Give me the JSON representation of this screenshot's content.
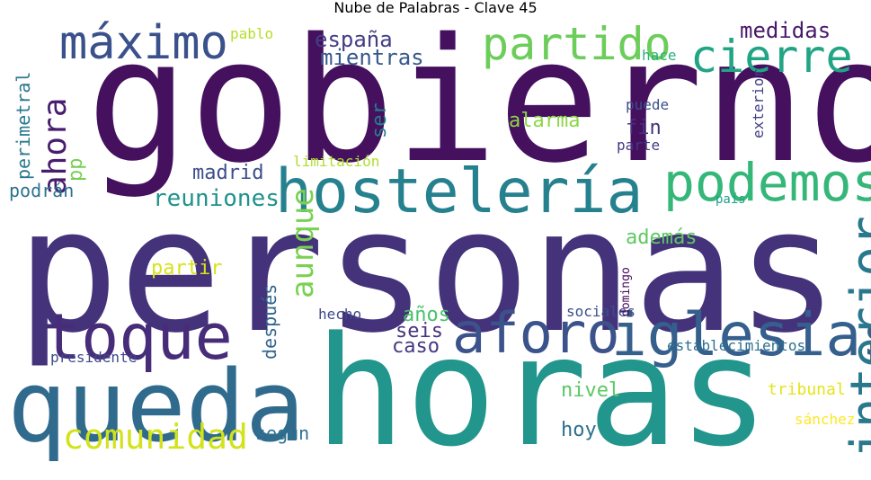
{
  "title": "Nube de Palabras - Clave 45",
  "words": [
    {
      "text": "gobierno",
      "color": "#45105e"
    },
    {
      "text": "personas",
      "color": "#44327a"
    },
    {
      "text": "horas",
      "color": "#22968c"
    },
    {
      "text": "queda",
      "color": "#306b8e"
    },
    {
      "text": "hostelería",
      "color": "#26818e"
    },
    {
      "text": "podemos",
      "color": "#35b779"
    },
    {
      "text": "toque",
      "color": "#472c7a"
    },
    {
      "text": "iglesias",
      "color": "#355f8d"
    },
    {
      "text": "aforo",
      "color": "#3b528b"
    },
    {
      "text": "interior",
      "color": "#2a788e"
    },
    {
      "text": "máximo",
      "color": "#3b518b"
    },
    {
      "text": "partido",
      "color": "#6ccd5a"
    },
    {
      "text": "cierre",
      "color": "#21a585"
    },
    {
      "text": "comunidad",
      "color": "#d2e21b"
    },
    {
      "text": "ahora",
      "color": "#481d6f"
    },
    {
      "text": "aunque",
      "color": "#79d151"
    },
    {
      "text": "reuniones",
      "color": "#20928c"
    },
    {
      "text": "españa",
      "color": "#433e85"
    },
    {
      "text": "mientras",
      "color": "#38588c"
    },
    {
      "text": "medidas",
      "color": "#48186a"
    },
    {
      "text": "perimetral",
      "color": "#2a788e"
    },
    {
      "text": "ser",
      "color": "#287c8e"
    },
    {
      "text": "alarma",
      "color": "#8bd646"
    },
    {
      "text": "fin",
      "color": "#46307e"
    },
    {
      "text": "pp",
      "color": "#75d054"
    },
    {
      "text": "madrid",
      "color": "#3d4e8a"
    },
    {
      "text": "podrán",
      "color": "#2c738e"
    },
    {
      "text": "limitación",
      "color": "#b0dd2f"
    },
    {
      "text": "partir",
      "color": "#d8e219"
    },
    {
      "text": "después",
      "color": "#32658e"
    },
    {
      "text": "además",
      "color": "#5ec962"
    },
    {
      "text": "años",
      "color": "#4ac16d"
    },
    {
      "text": "seis",
      "color": "#46337f"
    },
    {
      "text": "caso",
      "color": "#443a83"
    },
    {
      "text": "hecho",
      "color": "#3e4989"
    },
    {
      "text": "presidente",
      "color": "#3f4889"
    },
    {
      "text": "nivel",
      "color": "#5ac864"
    },
    {
      "text": "hoy",
      "color": "#2e6e8e"
    },
    {
      "text": "según",
      "color": "#2c718e"
    },
    {
      "text": "sociales",
      "color": "#3d4d8a"
    },
    {
      "text": "domingo",
      "color": "#46085c"
    },
    {
      "text": "establecimientos",
      "color": "#2d708e"
    },
    {
      "text": "tribunal",
      "color": "#e5e419"
    },
    {
      "text": "sánchez",
      "color": "#fde725"
    },
    {
      "text": "pablo",
      "color": "#b5de2b"
    },
    {
      "text": "hace",
      "color": "#29af7f"
    },
    {
      "text": "puede",
      "color": "#3b528b"
    },
    {
      "text": "parte",
      "color": "#453882"
    },
    {
      "text": "exterior",
      "color": "#424086"
    },
    {
      "text": "país",
      "color": "#1fa088"
    }
  ]
}
